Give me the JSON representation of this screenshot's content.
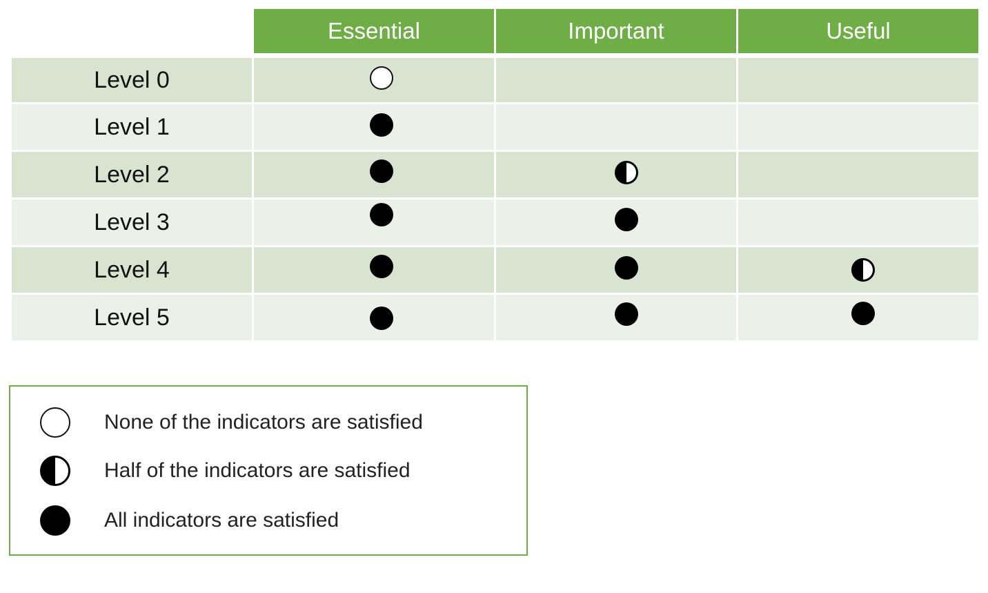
{
  "columns": [
    "Essential",
    "Important",
    "Useful"
  ],
  "rows": [
    {
      "label": "Level 0",
      "values": [
        "none",
        "",
        ""
      ]
    },
    {
      "label": "Level 1",
      "values": [
        "full",
        "",
        ""
      ]
    },
    {
      "label": "Level 2",
      "values": [
        "full",
        "half",
        ""
      ]
    },
    {
      "label": "Level 3",
      "values": [
        "full",
        "full",
        ""
      ]
    },
    {
      "label": "Level 4",
      "values": [
        "full",
        "full",
        "half"
      ]
    },
    {
      "label": "Level 5",
      "values": [
        "full",
        "full",
        "full"
      ]
    }
  ],
  "legend": [
    {
      "symbol": "none",
      "icon": "empty-circle-icon",
      "text": "None of the indicators are satisfied"
    },
    {
      "symbol": "half",
      "icon": "half-filled-circle-icon",
      "text": "Half of the indicators are satisfied"
    },
    {
      "symbol": "full",
      "icon": "filled-circle-icon",
      "text": "All indicators are satisfied"
    }
  ],
  "colors": {
    "header": "#6fad46",
    "row_dark": "#d8e4d0",
    "row_light": "#ebf1e8",
    "legend_border": "#6fad46"
  }
}
